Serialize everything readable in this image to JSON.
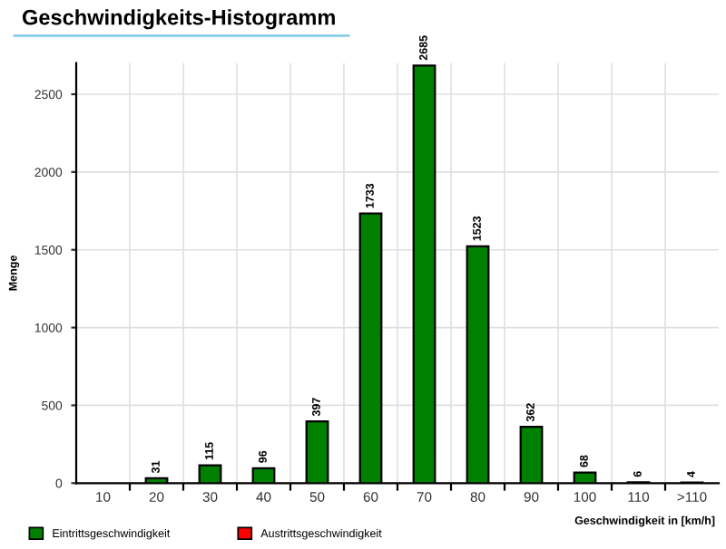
{
  "chart_data": {
    "type": "bar",
    "title": "Geschwindigkeits-Histogramm",
    "xlabel": "Geschwindigkeit in [km/h]",
    "ylabel": "Menge",
    "categories": [
      "10",
      "20",
      "30",
      "40",
      "50",
      "60",
      "70",
      "80",
      "90",
      "100",
      "110",
      ">110"
    ],
    "series": [
      {
        "name": "Eintrittsgeschwindigkeit",
        "color": "#008000",
        "values": [
          null,
          31,
          115,
          96,
          397,
          1733,
          2685,
          1523,
          362,
          68,
          6,
          4
        ],
        "value_labels": [
          null,
          "31",
          "115",
          "96",
          "397",
          "1733",
          "2685",
          "1523",
          "362",
          "68",
          "6",
          "4"
        ]
      },
      {
        "name": "Austrittsgeschwindigkeit",
        "color": "#ff0000",
        "values": [
          null,
          null,
          null,
          null,
          null,
          null,
          null,
          null,
          null,
          null,
          null,
          null
        ]
      }
    ],
    "ylim": [
      0,
      2700
    ],
    "yticks": [
      0,
      500,
      1000,
      1500,
      2000,
      2500
    ],
    "grid": true,
    "legend": "bottom left"
  }
}
